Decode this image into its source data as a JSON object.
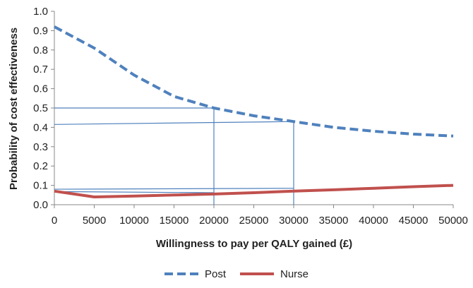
{
  "chart_data": {
    "type": "line",
    "title": "",
    "xlabel": "Willingness to pay per QALY gained (£)",
    "ylabel": "Probability of cost effectiveness",
    "xlim": [
      0,
      50000
    ],
    "ylim": [
      0,
      1.0
    ],
    "x_ticks": [
      0,
      5000,
      10000,
      15000,
      20000,
      25000,
      30000,
      35000,
      40000,
      45000,
      50000
    ],
    "x_tick_labels": [
      "0",
      "5000",
      "10000",
      "15000",
      "20000",
      "25000",
      "30000",
      "35000",
      "40000",
      "45000",
      "50000"
    ],
    "y_ticks": [
      0,
      0.1,
      0.2,
      0.3,
      0.4,
      0.5,
      0.6,
      0.7,
      0.8,
      0.9,
      1.0
    ],
    "y_tick_labels": [
      "0.0",
      "0.1",
      "0.2",
      "0.3",
      "0.4",
      "0.5",
      "0.6",
      "0.7",
      "0.8",
      "0.9",
      "1.0"
    ],
    "grid": false,
    "legend_position": "bottom",
    "series": [
      {
        "name": "Post",
        "color": "#4f81bd",
        "style": "dashed",
        "x": [
          0,
          5000,
          10000,
          15000,
          20000,
          25000,
          30000,
          35000,
          40000,
          45000,
          50000
        ],
        "y": [
          0.92,
          0.81,
          0.67,
          0.56,
          0.5,
          0.46,
          0.43,
          0.4,
          0.38,
          0.365,
          0.355
        ]
      },
      {
        "name": "Nurse",
        "color": "#c0504d",
        "style": "solid",
        "x": [
          0,
          5000,
          10000,
          15000,
          20000,
          25000,
          30000,
          35000,
          40000,
          45000,
          50000
        ],
        "y": [
          0.07,
          0.04,
          0.045,
          0.05,
          0.055,
          0.062,
          0.07,
          0.077,
          0.085,
          0.093,
          0.1
        ]
      }
    ],
    "reference_lines": {
      "color": "#4f81bd",
      "segments": [
        {
          "x1": 0,
          "y1": 0.5,
          "x2": 20000,
          "y2": 0.5
        },
        {
          "x1": 20000,
          "y1": 0,
          "x2": 20000,
          "y2": 0.5
        },
        {
          "x1": 0,
          "y1": 0.415,
          "x2": 30000,
          "y2": 0.43
        },
        {
          "x1": 30000,
          "y1": 0,
          "x2": 30000,
          "y2": 0.43
        },
        {
          "x1": 0,
          "y1": 0.08,
          "x2": 30000,
          "y2": 0.085
        },
        {
          "x1": 0,
          "y1": 0.068,
          "x2": 20000,
          "y2": 0.062
        }
      ]
    }
  }
}
